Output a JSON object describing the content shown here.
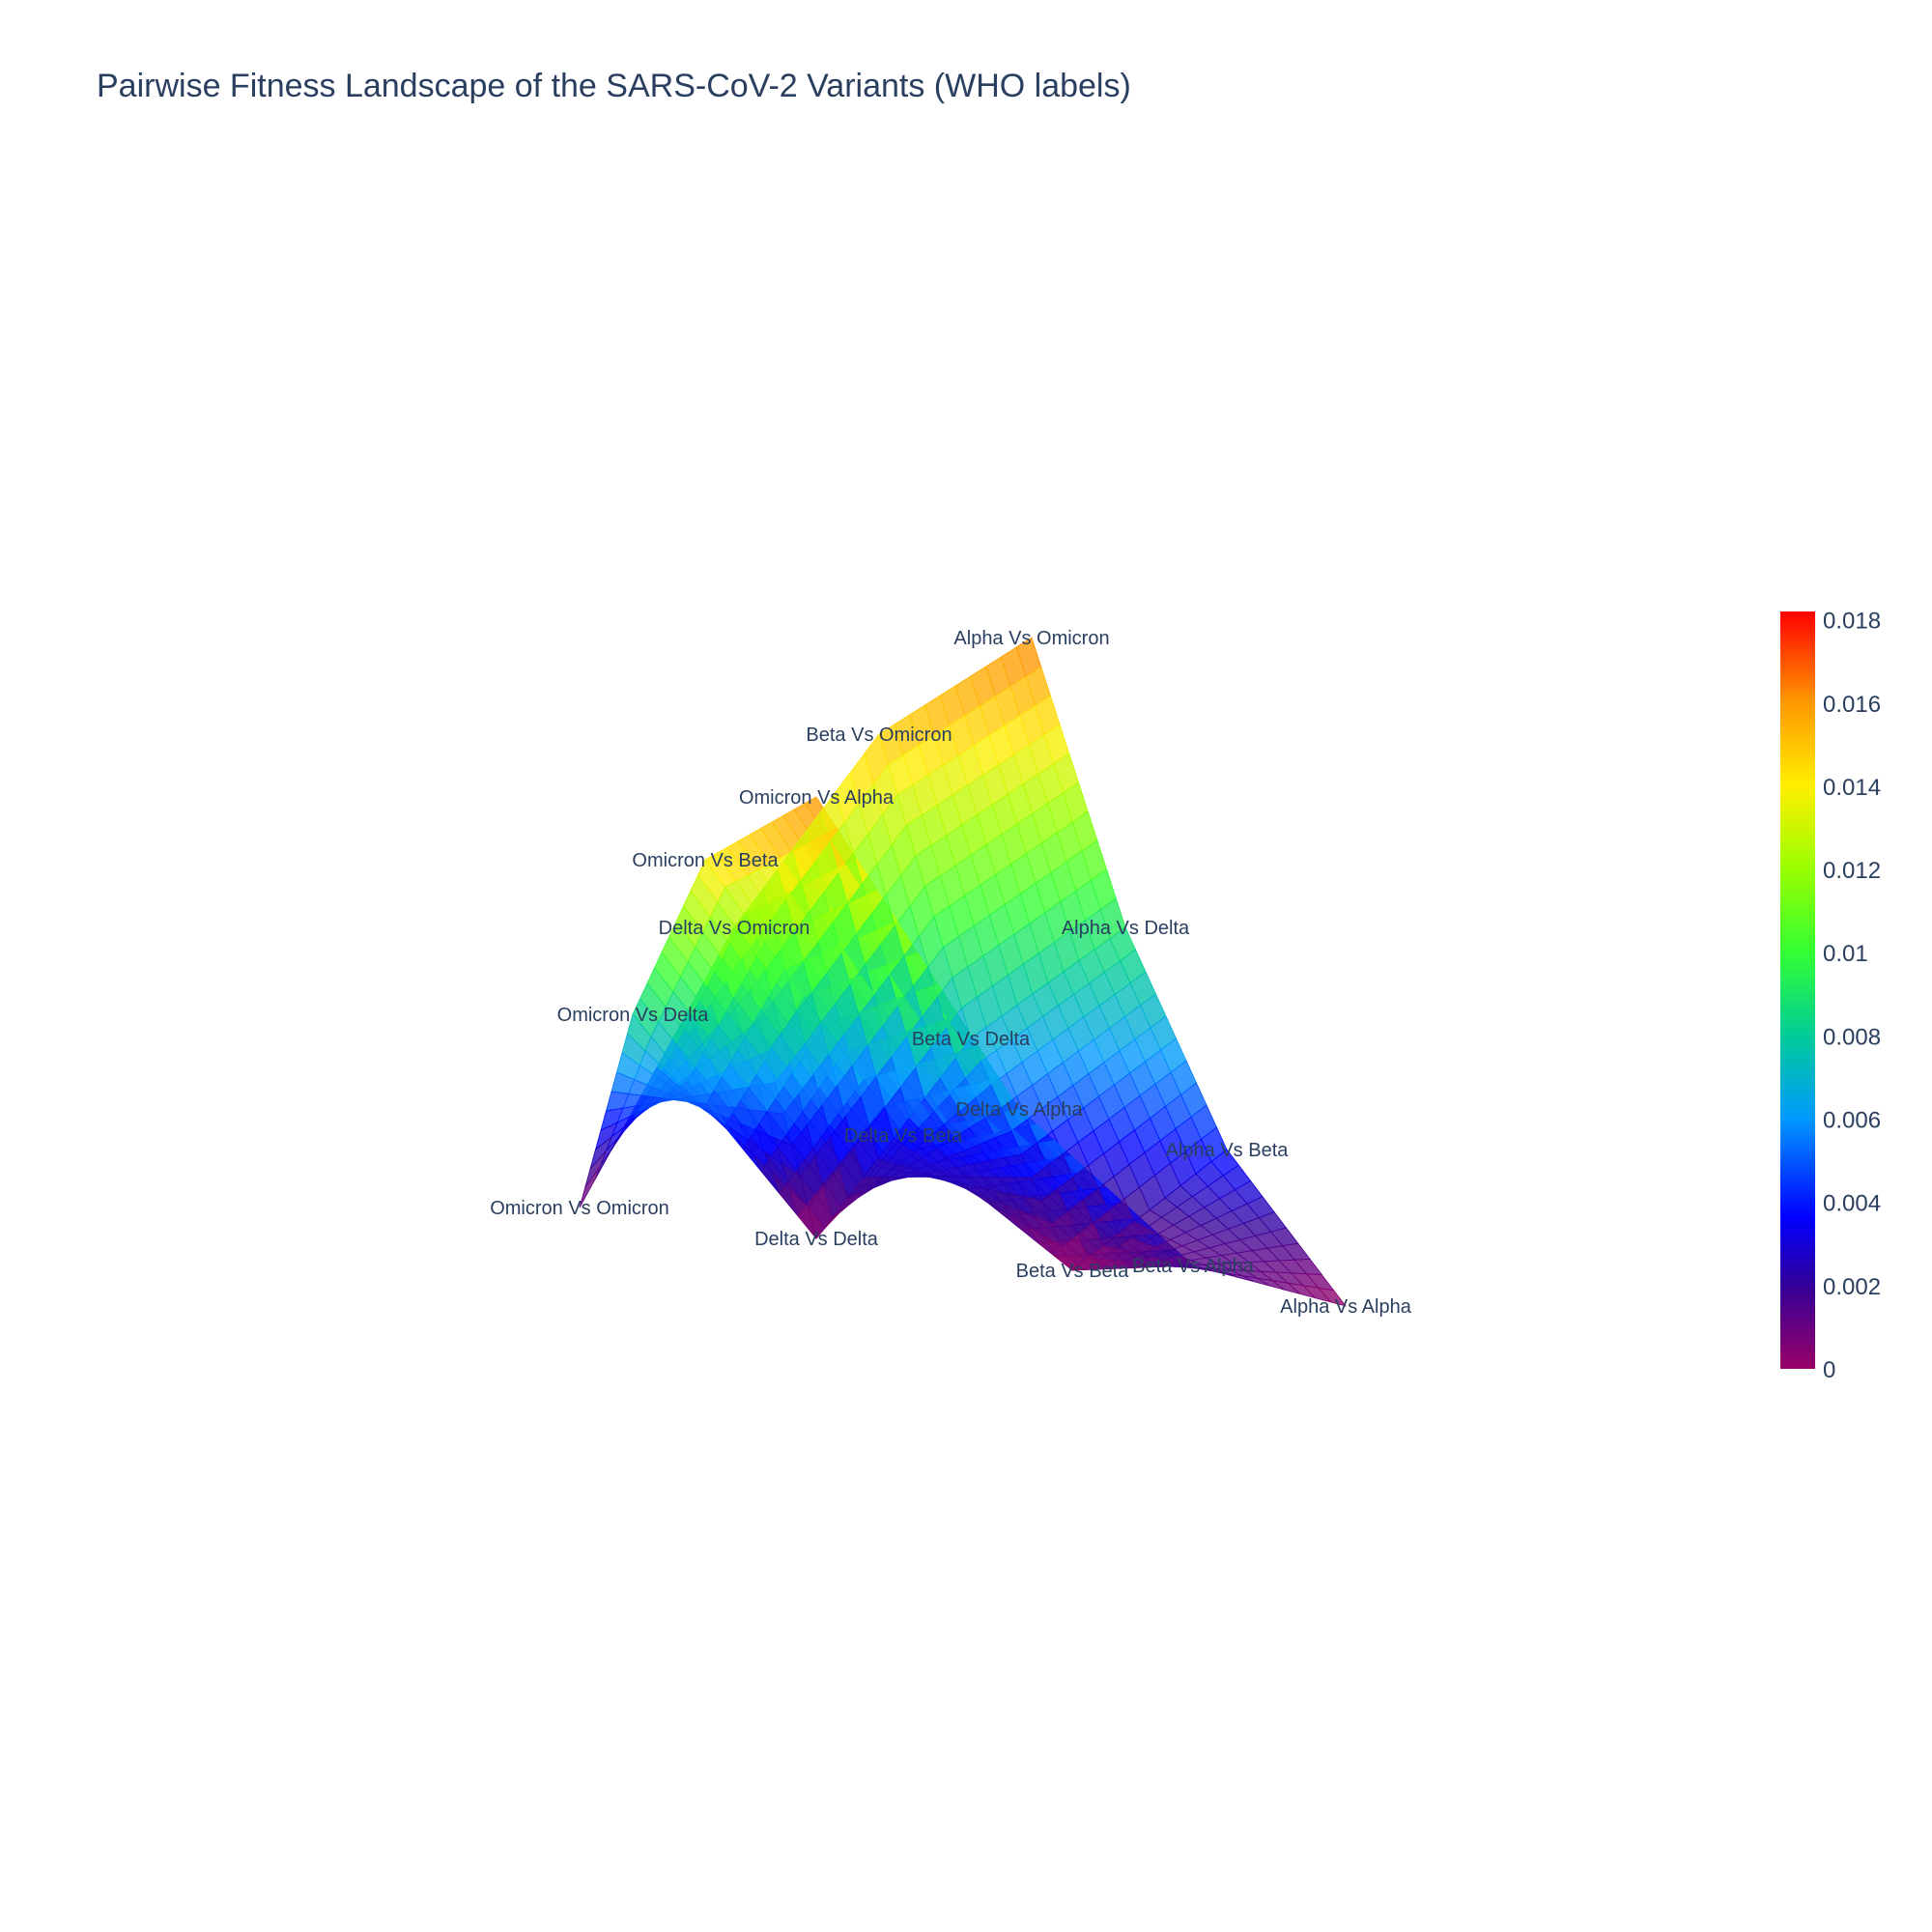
{
  "chart_data": {
    "type": "surface",
    "title": "Pairwise Fitness Landscape of the SARS-CoV-2 Variants (WHO labels)",
    "variants": [
      "Omicron",
      "Delta",
      "Beta",
      "Alpha"
    ],
    "points": [
      {
        "label": "Omicron Vs Omicron",
        "value": 0.0
      },
      {
        "label": "Omicron Vs Delta",
        "value": 0.0085
      },
      {
        "label": "Omicron Vs Beta",
        "value": 0.0145
      },
      {
        "label": "Omicron Vs Alpha",
        "value": 0.0165
      },
      {
        "label": "Delta Vs Omicron",
        "value": 0.0125
      },
      {
        "label": "Delta Vs Delta",
        "value": 0.0
      },
      {
        "label": "Delta Vs Beta",
        "value": 0.004
      },
      {
        "label": "Delta Vs Alpha",
        "value": 0.006
      },
      {
        "label": "Beta Vs Omicron",
        "value": 0.015
      },
      {
        "label": "Beta Vs Delta",
        "value": 0.007
      },
      {
        "label": "Beta Vs Beta",
        "value": 0.0
      },
      {
        "label": "Beta Vs Alpha",
        "value": 0.002
      },
      {
        "label": "Alpha Vs Omicron",
        "value": 0.0165
      },
      {
        "label": "Alpha Vs Delta",
        "value": 0.009
      },
      {
        "label": "Alpha Vs Beta",
        "value": 0.004
      },
      {
        "label": "Alpha Vs Alpha",
        "value": 0.0
      }
    ],
    "colorscale": "rainbow",
    "colorbar": {
      "min": 0,
      "max": 0.0182,
      "ticks": [
        "0",
        "0.002",
        "0.004",
        "0.006",
        "0.008",
        "0.01",
        "0.012",
        "0.014",
        "0.016",
        "0.018"
      ]
    }
  }
}
